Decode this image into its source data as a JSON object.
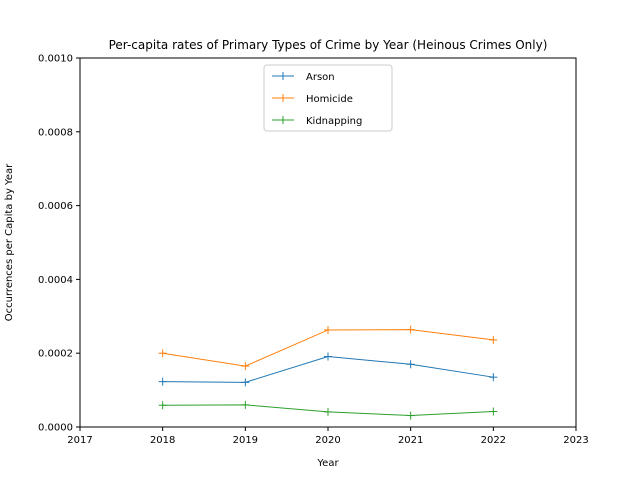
{
  "chart_data": {
    "type": "line",
    "title": "Per-capita rates of Primary Types of Crime by Year (Heinous Crimes Only)",
    "xlabel": "Year",
    "ylabel": "Occurrences per Capita by Year",
    "xlim": [
      2017,
      2023
    ],
    "ylim": [
      0,
      0.001
    ],
    "x_ticks": [
      "2017",
      "2018",
      "2019",
      "2020",
      "2021",
      "2022",
      "2023"
    ],
    "y_ticks": [
      "0.0000",
      "0.0002",
      "0.0004",
      "0.0006",
      "0.0008",
      "0.0010"
    ],
    "grid": false,
    "legend_position": "upper-center",
    "x": [
      2018,
      2019,
      2020,
      2021,
      2022
    ],
    "series": [
      {
        "name": "Arson",
        "color": "#1f77b4",
        "values": [
          0.000123,
          0.000121,
          0.000191,
          0.00017,
          0.000135
        ]
      },
      {
        "name": "Homicide",
        "color": "#ff7f0e",
        "values": [
          0.0002,
          0.000165,
          0.000263,
          0.000264,
          0.000236
        ]
      },
      {
        "name": "Kidnapping",
        "color": "#2ca02c",
        "values": [
          5.9e-05,
          6e-05,
          4.1e-05,
          3.1e-05,
          4.2e-05
        ]
      }
    ]
  }
}
